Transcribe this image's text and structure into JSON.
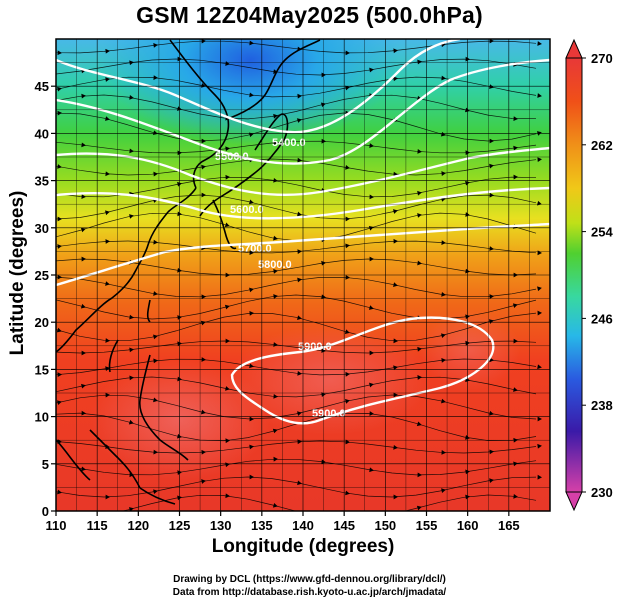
{
  "title": "GSM 12Z04May2025 (500.0hPa)",
  "x_axis": {
    "label": "Longitude (degrees)",
    "range": [
      110,
      170
    ],
    "ticks": [
      "110",
      "115",
      "120",
      "125",
      "130",
      "135",
      "140",
      "145",
      "150",
      "155",
      "160",
      "165"
    ]
  },
  "y_axis": {
    "label": "Latitude  (degrees)",
    "range": [
      0,
      50
    ],
    "ticks": [
      "0",
      "5",
      "10",
      "15",
      "20",
      "25",
      "30",
      "35",
      "40",
      "45"
    ]
  },
  "colorbar": {
    "min": 230,
    "max": 270,
    "labels": [
      "270",
      "262",
      "254",
      "246",
      "238",
      "230"
    ],
    "colors": [
      "#d640a8",
      "#3a1aa8",
      "#2a5ae0",
      "#28b8e8",
      "#38d8a0",
      "#50d030",
      "#c0e018",
      "#f0c818",
      "#f09018",
      "#f05018",
      "#e83838"
    ]
  },
  "contours": {
    "color": "#ffffff",
    "labels": [
      "5400.0",
      "5500.0",
      "5600.0",
      "5700.0",
      "5800.0",
      "5900.0",
      "5900.0"
    ]
  },
  "credits": {
    "line1": "Drawing by DCL (https://www.gfd-dennou.org/library/dcl/)",
    "line2": "Data from http://database.rish.kyoto-u.ac.jp/arch/jmadata/"
  }
}
